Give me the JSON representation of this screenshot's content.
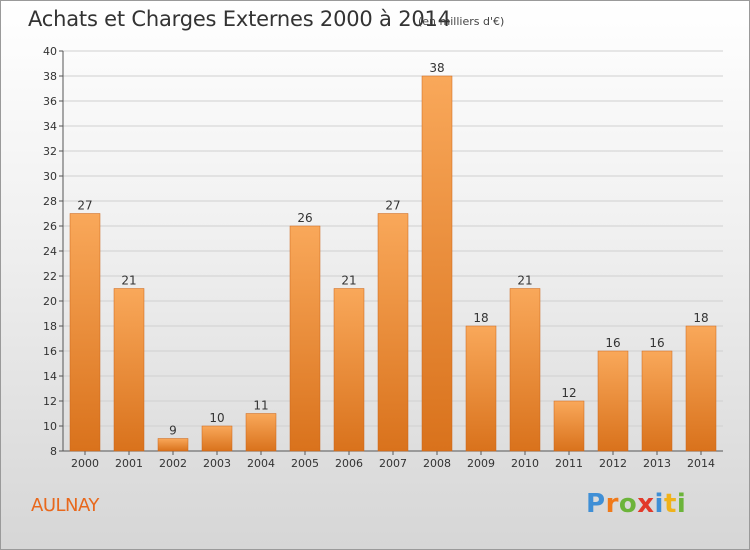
{
  "title": "Achats et Charges Externes 2000 à 2014",
  "subtitle": "(en milliers d'€)",
  "commune": "AULNAY",
  "logo": {
    "text": "Proxiti",
    "letter_colors": [
      "#3f8fd6",
      "#f07a1a",
      "#6cb43a",
      "#e23a2a",
      "#3f8fd6",
      "#f0b21a",
      "#6cb43a"
    ]
  },
  "colors": {
    "bar_light": "#f9a85a",
    "bar_dark": "#d9721c",
    "commune": "#e8681c"
  },
  "chart_data": {
    "type": "bar",
    "categories": [
      "2000",
      "2001",
      "2002",
      "2003",
      "2004",
      "2005",
      "2006",
      "2007",
      "2008",
      "2009",
      "2010",
      "2011",
      "2012",
      "2013",
      "2014"
    ],
    "values": [
      27,
      21,
      9,
      10,
      11,
      26,
      21,
      27,
      38,
      18,
      21,
      12,
      16,
      16,
      18
    ],
    "title": "Achats et Charges Externes 2000 à 2014",
    "subtitle": "(en milliers d'€)",
    "ylim": [
      8,
      40
    ],
    "yticks": [
      8,
      10,
      12,
      14,
      16,
      18,
      20,
      22,
      24,
      26,
      28,
      30,
      32,
      34,
      36,
      38,
      40
    ],
    "grid": "horizontal",
    "data_labels": true
  }
}
